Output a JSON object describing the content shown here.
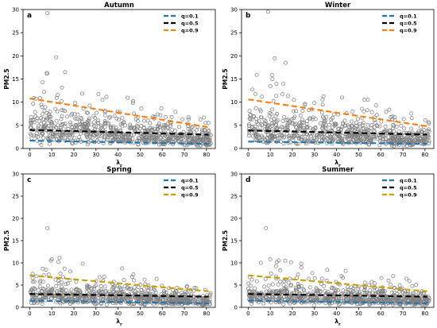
{
  "figure": {
    "background": "#ffffff"
  },
  "chart_data": [
    {
      "type": "scatter",
      "title": "Autumn",
      "panel_label": "a",
      "xlabel": "λ_r",
      "ylabel": "PM2.5",
      "xlim": [
        -3,
        84
      ],
      "ylim": [
        0,
        30
      ],
      "xticks": [
        0,
        10,
        20,
        30,
        40,
        50,
        60,
        70,
        80
      ],
      "yticks": [
        0,
        5,
        10,
        15,
        20,
        25,
        30
      ],
      "grid": false,
      "legend_position": "top-right",
      "scatter": {
        "points": 720,
        "x_range": [
          0,
          82
        ],
        "marker": "open-circle",
        "color": "#808080",
        "notable_points": [
          [
            8,
            29.2
          ],
          [
            12,
            19.7
          ],
          [
            8,
            16.2
          ],
          [
            16,
            16.5
          ]
        ]
      },
      "series": [
        {
          "name": "q=0.1",
          "color": "#1f77b4",
          "style": "dashed",
          "x": [
            0,
            81
          ],
          "y": [
            1.7,
            1.0
          ]
        },
        {
          "name": "q=0.5",
          "color": "#000000",
          "style": "dashed",
          "x": [
            0,
            81
          ],
          "y": [
            4.0,
            3.0
          ]
        },
        {
          "name": "q=0.9",
          "color": "#ff7f0e",
          "style": "dashed",
          "x": [
            0,
            81
          ],
          "y": [
            10.8,
            4.6
          ]
        }
      ]
    },
    {
      "type": "scatter",
      "title": "Winter",
      "panel_label": "b",
      "xlabel": "λ_r",
      "ylabel": "PM2.5",
      "xlim": [
        -3,
        84
      ],
      "ylim": [
        0,
        30
      ],
      "xticks": [
        0,
        10,
        20,
        30,
        40,
        50,
        60,
        70,
        80
      ],
      "yticks": [
        0,
        5,
        10,
        15,
        20,
        25,
        30
      ],
      "grid": false,
      "legend_position": "top-right",
      "scatter": {
        "points": 720,
        "x_range": [
          0,
          82
        ],
        "marker": "open-circle",
        "color": "#808080",
        "notable_points": [
          [
            9,
            29.5
          ],
          [
            12,
            19.5
          ],
          [
            17,
            18.5
          ],
          [
            11,
            15
          ]
        ]
      },
      "series": [
        {
          "name": "q=0.1",
          "color": "#1f77b4",
          "style": "dashed",
          "x": [
            0,
            81
          ],
          "y": [
            1.5,
            1.0
          ]
        },
        {
          "name": "q=0.5",
          "color": "#000000",
          "style": "dashed",
          "x": [
            0,
            81
          ],
          "y": [
            3.9,
            3.0
          ]
        },
        {
          "name": "q=0.9",
          "color": "#ff7f0e",
          "style": "dashed",
          "x": [
            0,
            81
          ],
          "y": [
            10.6,
            4.8
          ]
        }
      ]
    },
    {
      "type": "scatter",
      "title": "Spring",
      "panel_label": "c",
      "xlabel": "λ_r",
      "ylabel": "PM2.5",
      "xlim": [
        -3,
        84
      ],
      "ylim": [
        0,
        30
      ],
      "xticks": [
        0,
        10,
        20,
        30,
        40,
        50,
        60,
        70,
        80
      ],
      "yticks": [
        0,
        5,
        10,
        15,
        20,
        25,
        30
      ],
      "grid": false,
      "legend_position": "top-right",
      "scatter": {
        "points": 720,
        "x_range": [
          0,
          82
        ],
        "marker": "open-circle",
        "color": "#808080",
        "notable_points": [
          [
            8,
            17.8
          ],
          [
            10,
            10.8
          ],
          [
            13,
            10.2
          ],
          [
            24,
            9.8
          ]
        ]
      },
      "series": [
        {
          "name": "q=0.1",
          "color": "#1f77b4",
          "style": "dashed",
          "x": [
            0,
            81
          ],
          "y": [
            1.5,
            0.9
          ]
        },
        {
          "name": "q=0.5",
          "color": "#000000",
          "style": "dashed",
          "x": [
            0,
            81
          ],
          "y": [
            3.0,
            2.4
          ]
        },
        {
          "name": "q=0.9",
          "color": "#c8a000",
          "style": "dashed",
          "x": [
            0,
            81
          ],
          "y": [
            7.2,
            3.6
          ]
        }
      ]
    },
    {
      "type": "scatter",
      "title": "Summer",
      "panel_label": "d",
      "xlabel": "λ_r",
      "ylabel": "PM2.5",
      "xlim": [
        -3,
        84
      ],
      "ylim": [
        0,
        30
      ],
      "xticks": [
        0,
        10,
        20,
        30,
        40,
        50,
        60,
        70,
        80
      ],
      "yticks": [
        0,
        5,
        10,
        15,
        20,
        25,
        30
      ],
      "grid": false,
      "legend_position": "top-right",
      "scatter": {
        "points": 720,
        "x_range": [
          0,
          82
        ],
        "marker": "open-circle",
        "color": "#808080",
        "notable_points": [
          [
            8,
            17.8
          ],
          [
            10,
            10.8
          ],
          [
            13,
            10.2
          ],
          [
            24,
            9.8
          ]
        ]
      },
      "series": [
        {
          "name": "q=0.1",
          "color": "#1f77b4",
          "style": "dashed",
          "x": [
            0,
            81
          ],
          "y": [
            1.5,
            0.9
          ]
        },
        {
          "name": "q=0.5",
          "color": "#000000",
          "style": "dashed",
          "x": [
            0,
            81
          ],
          "y": [
            3.0,
            2.4
          ]
        },
        {
          "name": "q=0.9",
          "color": "#c8a000",
          "style": "dashed",
          "x": [
            0,
            81
          ],
          "y": [
            7.2,
            3.6
          ]
        }
      ]
    }
  ]
}
